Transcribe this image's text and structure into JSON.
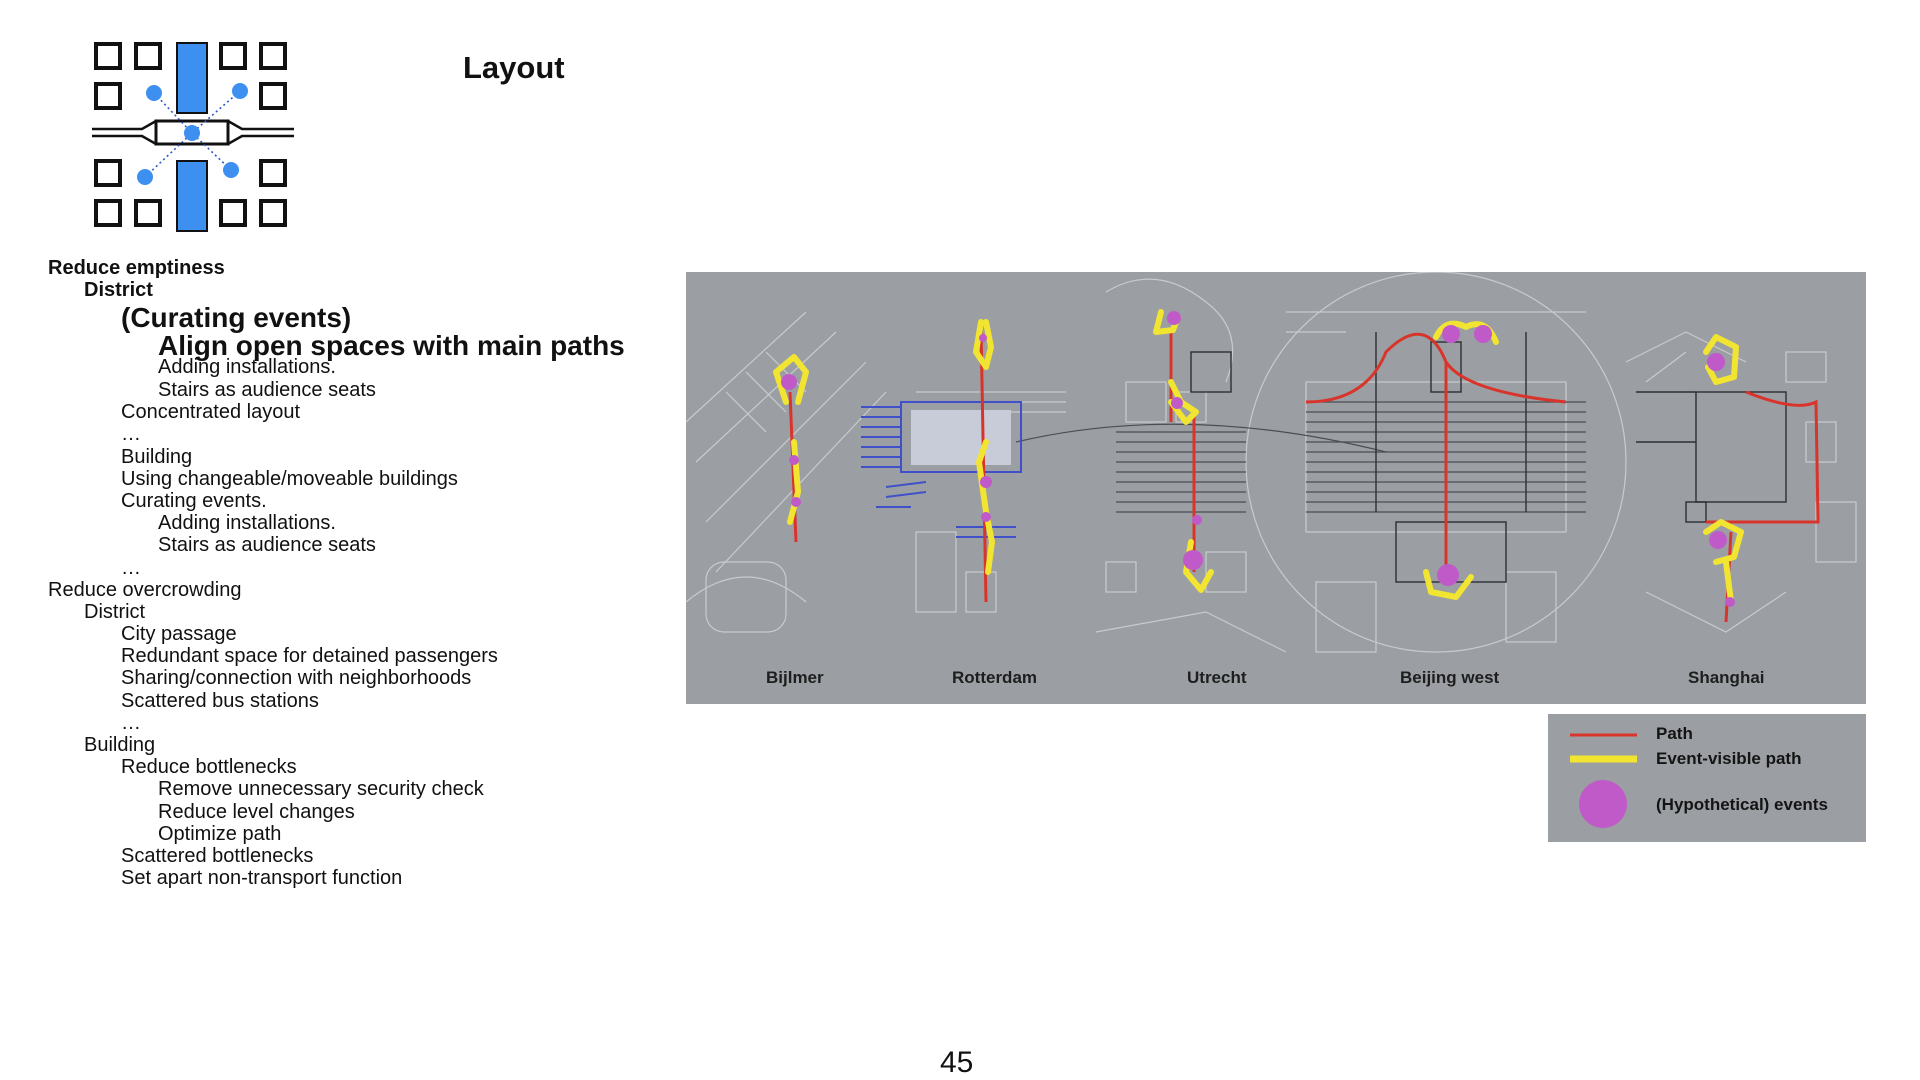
{
  "slide": {
    "title": "Layout",
    "page_number": "45"
  },
  "outline": {
    "reduce_emptiness": "Reduce emptiness",
    "district_1": "District",
    "curating_events_heading": "(Curating events)",
    "align_open_spaces": "Align open spaces with main paths",
    "adding_installations_1": "Adding installations.",
    "stairs_seats_1": "Stairs as audience seats",
    "concentrated_layout": "Concentrated layout",
    "ellipsis_1": "…",
    "building_1": "Building",
    "changeable_buildings": "Using changeable/moveable buildings",
    "curating_events": "Curating events.",
    "adding_installations_2": "Adding installations.",
    "stairs_seats_2": "Stairs as audience seats",
    "ellipsis_2": "…",
    "reduce_overcrowding": "Reduce overcrowding",
    "district_2": "District",
    "city_passage": "City passage",
    "redundant_space": "Redundant space for detained passengers",
    "sharing_connection": "Sharing/connection with neighborhoods",
    "scattered_bus": "Scattered bus stations",
    "ellipsis_3": "…",
    "building_2": "Building",
    "reduce_bottlenecks": "Reduce bottlenecks",
    "remove_security": "Remove unnecessary security check",
    "reduce_level": "Reduce level changes",
    "optimize_path": "Optimize path",
    "scattered_bottlenecks": "Scattered bottlenecks",
    "set_apart": "Set apart non-transport function"
  },
  "map": {
    "cities": [
      "Bijlmer",
      "Rotterdam",
      "Utrecht",
      "Beijing west",
      "Shanghai"
    ]
  },
  "legend": {
    "path": "Path",
    "event_visible_path": "Event-visible path",
    "events": "(Hypothetical) events"
  },
  "colors": {
    "diagram_blue": "#3d8ff0",
    "path_red": "#d9342b",
    "event_path_yellow": "#f1e531",
    "event_purple": "#c05ac8",
    "map_gray": "#9b9fa3"
  }
}
